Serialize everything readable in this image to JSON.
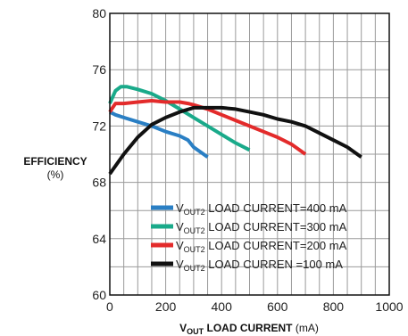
{
  "chart_data": {
    "type": "line",
    "ylabel": "EFFICIENCY",
    "ylabel_unit": "(%)",
    "xlabel_main": "V",
    "xlabel_sub": "OUT",
    "xlabel_bold_rest": " LOAD CURRENT",
    "xlabel_unit": " (mA)",
    "xlim": [
      0,
      1000
    ],
    "ylim": [
      60,
      80
    ],
    "x_ticks": [
      "0",
      "200",
      "400",
      "600",
      "800",
      "1000"
    ],
    "y_ticks": [
      "60",
      "64",
      "68",
      "72",
      "76",
      "80"
    ],
    "x_tick_values": [
      0,
      200,
      400,
      600,
      800,
      1000
    ],
    "y_tick_values": [
      60,
      64,
      68,
      72,
      76,
      80
    ],
    "grid": true,
    "legend_position": "bottom-right",
    "series": [
      {
        "name": "VOUT2 LOAD CURRENT=400 mA",
        "legend_prefix": "V",
        "legend_sub": "OUT2",
        "legend_rest": " LOAD CURRENT=400 mA",
        "color": "#2a7fc4",
        "x": [
          0,
          10,
          20,
          50,
          100,
          150,
          200,
          250,
          280,
          300,
          350
        ],
        "y": [
          73.0,
          72.9,
          72.8,
          72.6,
          72.3,
          72.0,
          71.6,
          71.3,
          71.0,
          70.5,
          69.8
        ]
      },
      {
        "name": "VOUT2 LOAD CURRENT=300 mA",
        "legend_prefix": "V",
        "legend_sub": "OUT2",
        "legend_rest": " LOAD CURRENT=300 mA",
        "color": "#1aaa8a",
        "x": [
          0,
          20,
          40,
          60,
          100,
          150,
          200,
          250,
          300,
          350,
          400,
          450,
          500
        ],
        "y": [
          73.6,
          74.5,
          74.8,
          74.8,
          74.6,
          74.3,
          73.8,
          73.2,
          72.6,
          72.0,
          71.4,
          70.8,
          70.3
        ]
      },
      {
        "name": "VOUT2 LOAD CURRENT=200 mA",
        "legend_prefix": "V",
        "legend_sub": "OUT2",
        "legend_rest": " LOAD CURRENT=200 mA",
        "color": "#e32b2b",
        "x": [
          0,
          20,
          50,
          100,
          150,
          200,
          250,
          280,
          300,
          350,
          400,
          450,
          500,
          550,
          600,
          650,
          700
        ],
        "y": [
          73.0,
          73.6,
          73.6,
          73.7,
          73.8,
          73.7,
          73.7,
          73.6,
          73.5,
          73.2,
          72.8,
          72.4,
          72.0,
          71.6,
          71.2,
          70.7,
          70.0
        ]
      },
      {
        "name": "VOUT2 LOAD CURREN =100 mA",
        "legend_prefix": "V",
        "legend_sub": "OUT2",
        "legend_rest": " LOAD CURREN =100 mA",
        "color": "#111111",
        "x": [
          0,
          50,
          100,
          150,
          200,
          250,
          300,
          350,
          400,
          450,
          500,
          550,
          600,
          650,
          700,
          750,
          800,
          850,
          900
        ],
        "y": [
          68.6,
          70.0,
          71.2,
          72.1,
          72.6,
          73.0,
          73.3,
          73.3,
          73.3,
          73.2,
          73.0,
          72.8,
          72.5,
          72.3,
          72.0,
          71.5,
          71.0,
          70.5,
          69.8
        ]
      }
    ]
  }
}
